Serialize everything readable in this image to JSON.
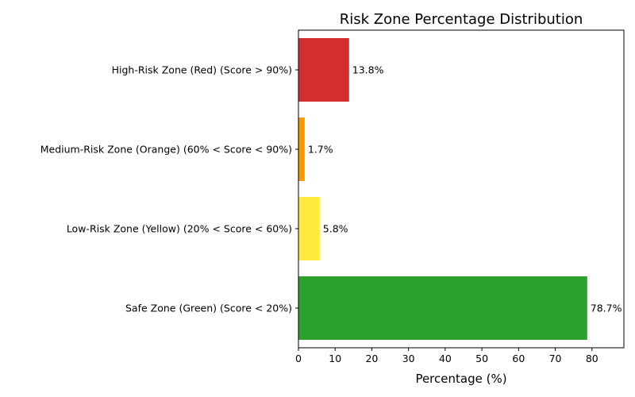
{
  "chart_data": {
    "type": "bar",
    "orientation": "horizontal",
    "title": "Risk Zone Percentage Distribution",
    "xlabel": "Percentage (%)",
    "ylabel": "",
    "xlim": [
      0,
      88.7
    ],
    "x_ticks": [
      0,
      10,
      20,
      30,
      40,
      50,
      60,
      70,
      80
    ],
    "grid": false,
    "categories": [
      "Safe Zone (Green) (Score < 20%)",
      "Low-Risk Zone (Yellow) (20% < Score < 60%)",
      "Medium-Risk Zone (Orange) (60% < Score < 90%)",
      "High-Risk Zone (Red) (Score > 90%)"
    ],
    "values": [
      78.7,
      5.8,
      1.7,
      13.8
    ],
    "value_labels": [
      "78.7%",
      "5.8%",
      "1.7%",
      "13.8%"
    ],
    "colors": [
      "#2ca02c",
      "#ffeb3b",
      "#ff9800",
      "#d32f2f"
    ]
  }
}
